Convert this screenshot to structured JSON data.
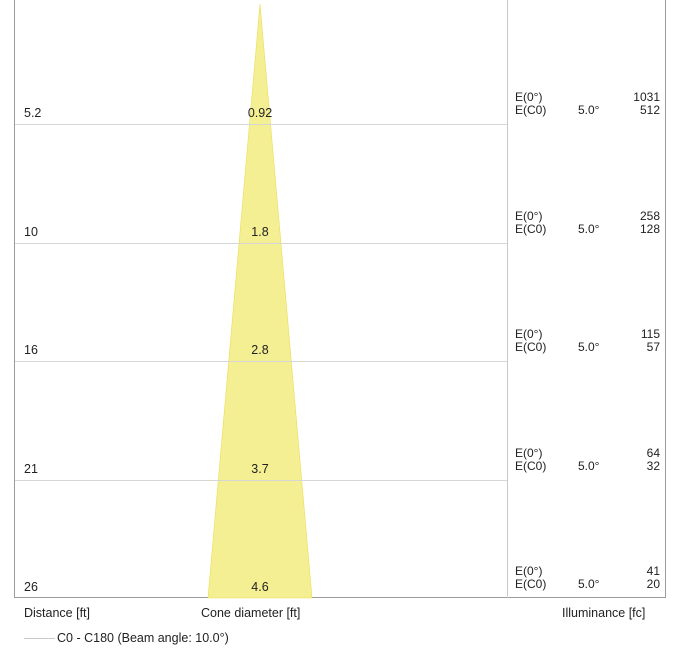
{
  "chart_data": {
    "type": "table",
    "title": "",
    "columns": {
      "distance": "Distance [ft]",
      "diameter": "Cone diameter [ft]",
      "illuminance": "Illuminance [fc]"
    },
    "legend": "C0 - C180 (Beam angle: 10.0°)",
    "rows": [
      {
        "distance": "5.2",
        "diameter": "0.92",
        "e0_label": "E(0°)",
        "e0": "1031",
        "ec0_label": "E(C0)",
        "ec0_angle": "5.0°",
        "ec0": "512"
      },
      {
        "distance": "10",
        "diameter": "1.8",
        "e0_label": "E(0°)",
        "e0": "258",
        "ec0_label": "E(C0)",
        "ec0_angle": "5.0°",
        "ec0": "128"
      },
      {
        "distance": "16",
        "diameter": "2.8",
        "e0_label": "E(0°)",
        "e0": "115",
        "ec0_label": "E(C0)",
        "ec0_angle": "5.0°",
        "ec0": "57"
      },
      {
        "distance": "21",
        "diameter": "3.7",
        "e0_label": "E(0°)",
        "e0": "64",
        "ec0_label": "E(C0)",
        "ec0_angle": "5.0°",
        "ec0": "32"
      },
      {
        "distance": "26",
        "diameter": "4.6",
        "e0_label": "E(0°)",
        "e0": "41",
        "ec0_label": "E(C0)",
        "ec0_angle": "5.0°",
        "ec0": "20"
      }
    ],
    "beam_angle_deg": 10.0
  },
  "colors": {
    "cone_fill": "#f5ef93",
    "cone_stroke": "#e9dd55",
    "grid": "#d6d6d6"
  }
}
